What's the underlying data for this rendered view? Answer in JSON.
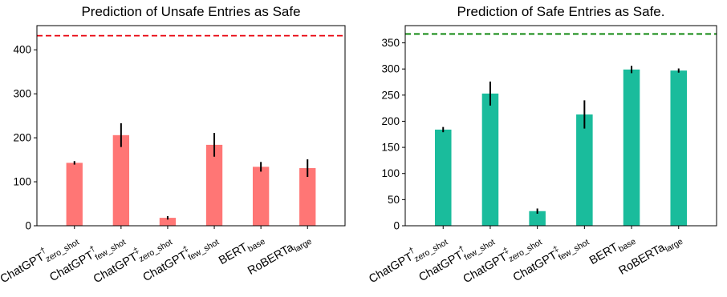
{
  "chart_data": [
    {
      "type": "bar",
      "title": "Prediction of Unsafe Entries as Safe",
      "xlabel": "",
      "ylabel": "",
      "ylim": [
        0,
        455
      ],
      "yticks": [
        0,
        100,
        200,
        300,
        400
      ],
      "bar_color": "#ff7675",
      "reference_line": {
        "value": 432,
        "color": "#e8000b",
        "style": "dashed"
      },
      "categories": [
        {
          "base": "ChatGPT",
          "sup": "†",
          "sub": "zero_shot"
        },
        {
          "base": "ChatGPT",
          "sup": "†",
          "sub": "few_shot"
        },
        {
          "base": "ChatGPT",
          "sup": "‡",
          "sub": "zero_shot"
        },
        {
          "base": "ChatGPT",
          "sup": "‡",
          "sub": "few_shot"
        },
        {
          "base": "BERT",
          "sup": "",
          "sub": "base"
        },
        {
          "base": "RoBERTa",
          "sup": "",
          "sub": "large"
        }
      ],
      "values": [
        143,
        206,
        18,
        184,
        134,
        131
      ],
      "errors": [
        4,
        27,
        4,
        27,
        11,
        20
      ]
    },
    {
      "type": "bar",
      "title": "Prediction of Safe Entries as Safe.",
      "xlabel": "",
      "ylabel": "",
      "ylim": [
        0,
        383
      ],
      "yticks": [
        0,
        50,
        100,
        150,
        200,
        250,
        300,
        350
      ],
      "bar_color": "#1abc9c",
      "reference_line": {
        "value": 367,
        "color": "#008000",
        "style": "dashed"
      },
      "categories": [
        {
          "base": "ChatGPT",
          "sup": "†",
          "sub": "zero_shot"
        },
        {
          "base": "ChatGPT",
          "sup": "†",
          "sub": "few_shot"
        },
        {
          "base": "ChatGPT",
          "sup": "‡",
          "sub": "zero_shot"
        },
        {
          "base": "ChatGPT",
          "sup": "‡",
          "sub": "few_shot"
        },
        {
          "base": "BERT",
          "sup": "",
          "sub": "base"
        },
        {
          "base": "RoBERTa",
          "sup": "",
          "sub": "large"
        }
      ],
      "values": [
        184,
        253,
        28,
        213,
        299,
        297
      ],
      "errors": [
        5,
        23,
        5,
        27,
        7,
        4
      ]
    }
  ]
}
